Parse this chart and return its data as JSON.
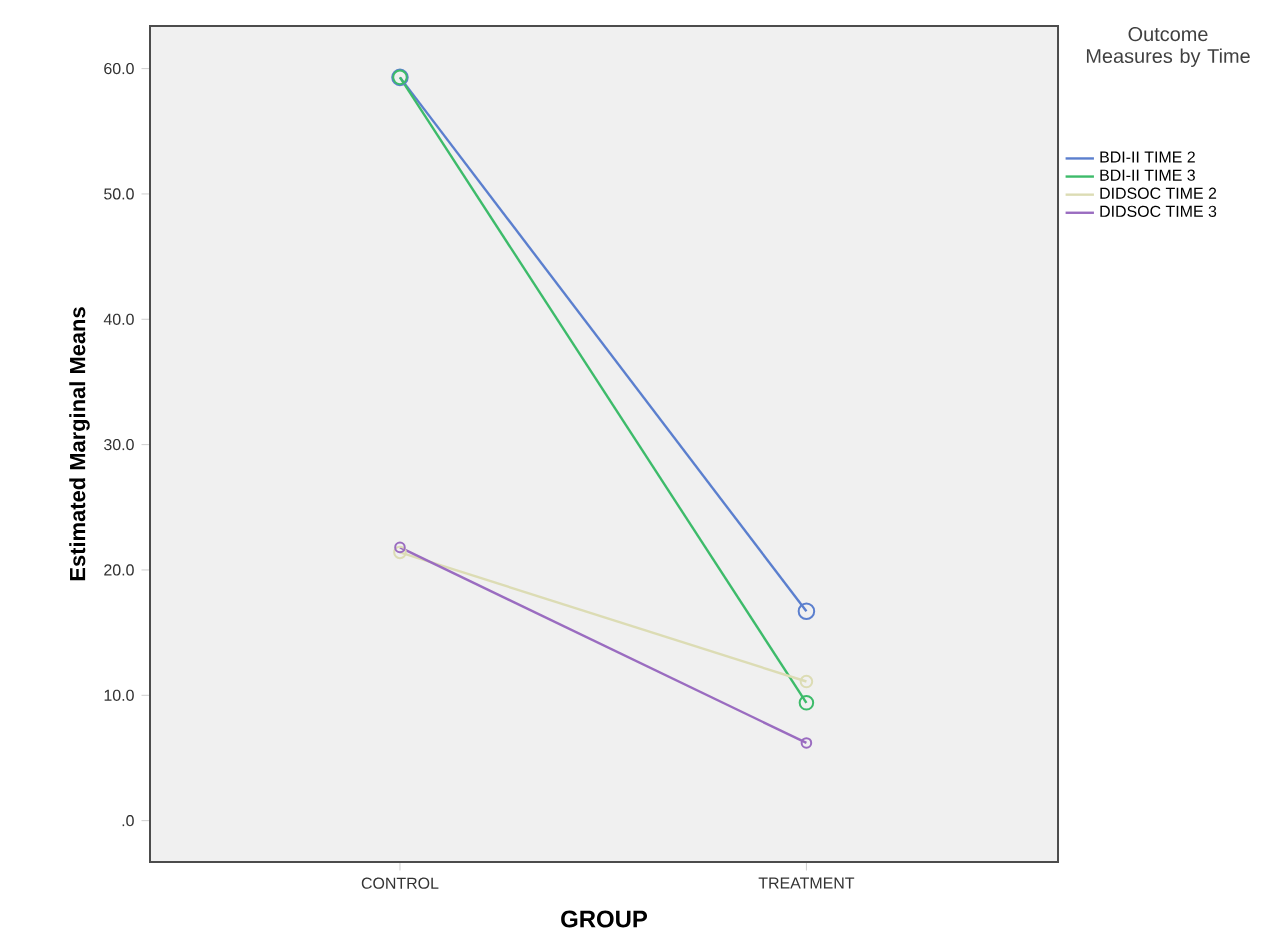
{
  "chart_data": {
    "type": "line",
    "xlabel": "GROUP",
    "ylabel": "Estimated Marginal Means",
    "legend_title": "Outcome Measures by Time",
    "categories": [
      "CONTROL",
      "TREATMENT"
    ],
    "series": [
      {
        "name": "BDI-II TIME 2",
        "color": "#5b7fce",
        "values": [
          59.3,
          16.7
        ]
      },
      {
        "name": "BDI-II TIME 3",
        "color": "#3dbb6a",
        "values": [
          59.3,
          9.4
        ]
      },
      {
        "name": "DIDSOC TIME 2",
        "color": "#dcdcb4",
        "values": [
          21.4,
          11.1
        ]
      },
      {
        "name": "DIDSOC TIME 3",
        "color": "#9a6cc0",
        "values": [
          21.8,
          6.2
        ]
      }
    ],
    "ylim": [
      -3.3,
      63.4
    ],
    "yticks": [
      {
        "value": 0,
        "label": ".0"
      },
      {
        "value": 10,
        "label": "10.0"
      },
      {
        "value": 20,
        "label": "20.0"
      },
      {
        "value": 30,
        "label": "30.0"
      },
      {
        "value": 40,
        "label": "40.0"
      },
      {
        "value": 50,
        "label": "50.0"
      },
      {
        "value": 60,
        "label": "60.0"
      }
    ],
    "legend": "right",
    "marker": "circle",
    "line_style": "solid",
    "grid": false
  }
}
